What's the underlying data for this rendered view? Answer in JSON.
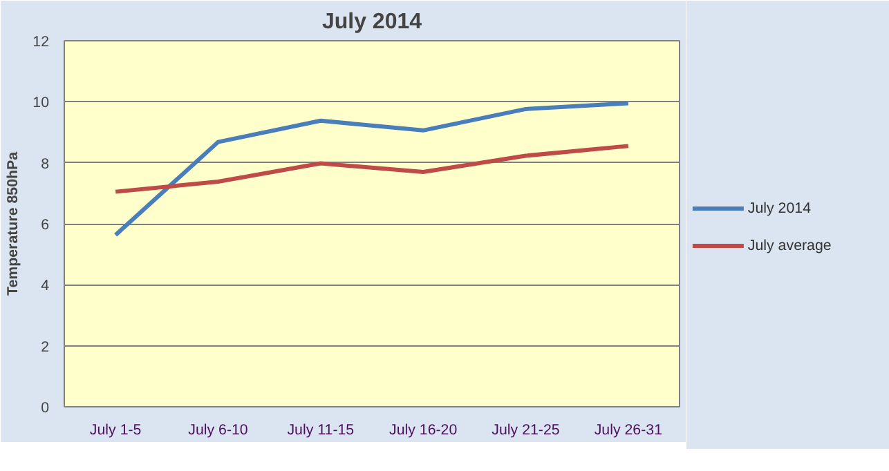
{
  "chart_data": {
    "type": "line",
    "title": "July 2014",
    "ylabel": "Temperature 850hPa",
    "categories": [
      "July 1-5",
      "July 6-10",
      "July 11-15",
      "July 16-20",
      "July 21-25",
      "July 26-31"
    ],
    "series": [
      {
        "name": "July 2014",
        "color": "#4a7ebb",
        "values": [
          5.63,
          8.68,
          9.38,
          9.06,
          9.76,
          9.95
        ]
      },
      {
        "name": "July average",
        "color": "#be4b48",
        "values": [
          7.05,
          7.38,
          7.98,
          7.7,
          8.23,
          8.55
        ]
      }
    ],
    "ylim": [
      0,
      12
    ],
    "yticks": [
      0,
      2,
      4,
      6,
      8,
      10,
      12
    ],
    "grid": "y",
    "legend": "right",
    "marker": "none",
    "line_style": "solid"
  }
}
